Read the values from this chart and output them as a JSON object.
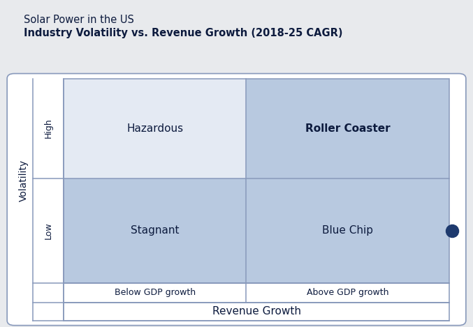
{
  "title_line1": "Solar Power in the US",
  "title_line2": "Industry Volatility vs. Revenue Growth (2018-25 CAGR)",
  "quadrant_labels": [
    "Hazardous",
    "Roller Coaster",
    "Stagnant",
    "Blue Chip"
  ],
  "x_axis_label": "Revenue Growth",
  "x_sub_labels": [
    "Below GDP growth",
    "Above GDP growth"
  ],
  "y_axis_label": "Volatility",
  "y_sub_labels": [
    "High",
    "Low"
  ],
  "color_light_blue": "#b8c9e0",
  "color_lighter": "#e4eaf3",
  "color_outer_bg": "#e8eaed",
  "color_card_bg": "#ffffff",
  "color_text_dark": "#0d1b3e",
  "color_border": "#8899bb",
  "color_dot": "#1e3a6e",
  "figsize": [
    6.77,
    4.69
  ],
  "dpi": 100
}
